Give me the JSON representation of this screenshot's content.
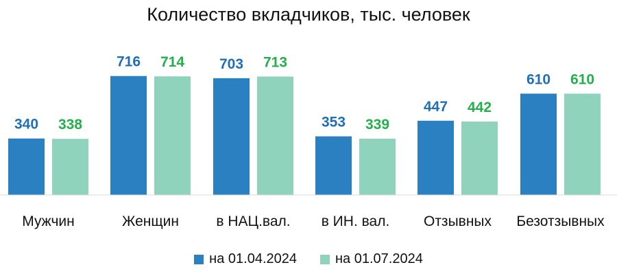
{
  "chart_data": {
    "type": "bar",
    "title": "Количество вкладчиков, тыс. человек",
    "categories": [
      "Мужчин",
      "Женщин",
      "в НАЦ.вал.",
      "в ИН. вал.",
      "Отзывных",
      "Безотзывных"
    ],
    "series": [
      {
        "name": "на 01.04.2024",
        "values": [
          340,
          716,
          703,
          353,
          447,
          610
        ],
        "color": "#2a80c1",
        "label_color": "#1f6eb8"
      },
      {
        "name": "на 01.07.2024",
        "values": [
          338,
          714,
          713,
          339,
          442,
          610
        ],
        "color": "#8fd3bd",
        "label_color": "#22b04b"
      }
    ],
    "ylim": [
      0,
      800
    ],
    "xlabel": "",
    "ylabel": "",
    "grid": false,
    "legend": "bottom",
    "axis_color": "#d9d9d9"
  }
}
